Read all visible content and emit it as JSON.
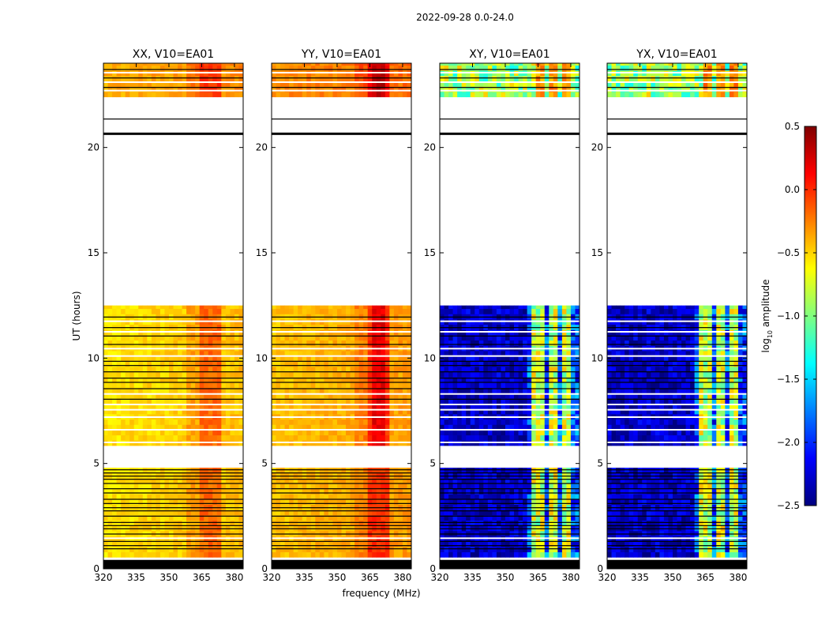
{
  "suptitle": "2022-09-28 0.0-24.0",
  "chart_data": {
    "type": "heatmap",
    "panels": [
      {
        "title": "XX, V10=EA01",
        "kind": "parallel",
        "warm": "amber"
      },
      {
        "title": "YY, V10=EA01",
        "kind": "parallel",
        "warm": "deep"
      },
      {
        "title": "XY, V10=EA01",
        "kind": "cross"
      },
      {
        "title": "YX, V10=EA01",
        "kind": "cross"
      }
    ],
    "xlabel": "frequency (MHz)",
    "ylabel": "UT (hours)",
    "xlim": [
      320,
      384
    ],
    "ylim": [
      0,
      24
    ],
    "xticks": [
      320,
      335,
      350,
      365,
      380
    ],
    "xtick_labels": [
      "320",
      "335",
      "350",
      "365",
      "380"
    ],
    "yticks": [
      0,
      5,
      10,
      15,
      20
    ],
    "ytick_labels": [
      "0",
      "5",
      "10",
      "15",
      "20"
    ],
    "data_time_blocks": [
      [
        0.55,
        4.8
      ],
      [
        5.85,
        12.5
      ],
      [
        22.4,
        24.0
      ]
    ],
    "blank_time_lines": [
      1.45,
      6.0,
      6.6,
      7.2,
      7.55,
      7.8,
      8.3,
      10.1,
      10.45,
      11.25,
      11.75,
      22.7,
      23.1,
      23.55
    ],
    "flagged_black_time_lines": [
      0.05,
      0.1,
      0.15,
      0.2,
      0.25,
      0.3,
      0.35,
      0.4,
      0.95,
      1.1,
      1.3,
      1.65,
      1.9,
      2.05,
      2.2,
      2.5,
      2.75,
      2.9,
      3.1,
      3.3,
      3.6,
      3.8,
      4.05,
      4.25,
      4.4,
      4.55,
      4.7,
      8.05,
      8.55,
      8.85,
      9.05,
      9.35,
      9.65,
      9.85,
      10.65,
      11.05,
      11.45,
      11.95,
      21.35,
      20.65,
      22.85,
      23.3,
      23.7
    ],
    "bright_freq_channels_mhz": [
      [
        364,
        368
      ],
      [
        370,
        374
      ],
      [
        376,
        379
      ]
    ],
    "colorbar": {
      "label": "log10 amplitude",
      "label_main": "log",
      "label_sub": "10",
      "label_tail": " amplitude",
      "min": -2.5,
      "max": 0.5,
      "ticks": [
        0.5,
        0.0,
        -0.5,
        -1.0,
        -1.5,
        -2.0,
        -2.5
      ],
      "tick_labels": [
        "0.5",
        "0.0",
        "−0.5",
        "−1.0",
        "−1.5",
        "−2.0",
        "−2.5"
      ],
      "colormap": "jet"
    }
  }
}
